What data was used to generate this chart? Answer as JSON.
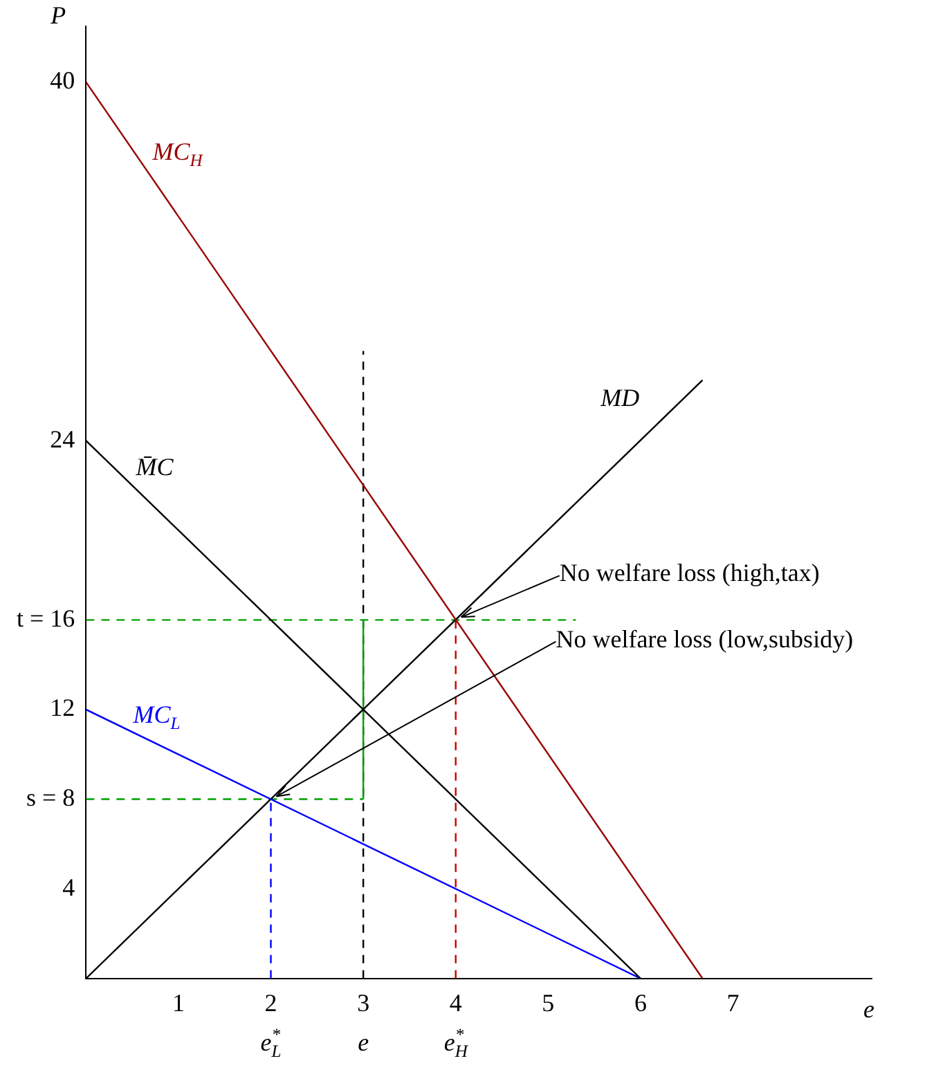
{
  "chart_data": {
    "type": "line",
    "ylabel": "P",
    "xlabel": "e",
    "xlim": [
      0,
      8.5
    ],
    "ylim": [
      0,
      42.5
    ],
    "xticks": [
      1,
      2,
      3,
      4,
      5,
      6,
      7
    ],
    "yticks": [
      4,
      {
        "value": 8,
        "label": "s = 8"
      },
      12,
      {
        "value": 16,
        "label": "t = 16"
      },
      24,
      40
    ],
    "grid": false,
    "legend": false,
    "marker": "none",
    "series": [
      {
        "name": "MC$_{H}$",
        "color": "#990000",
        "x": [
          0,
          6.67
        ],
        "values": [
          40,
          0
        ]
      },
      {
        "name": "M̄C",
        "color": "#000000",
        "x": [
          0,
          6
        ],
        "values": [
          24,
          0
        ]
      },
      {
        "name": "MC$_{L}$",
        "color": "#0000ff",
        "x": [
          0,
          6
        ],
        "values": [
          12,
          0
        ]
      },
      {
        "name": "MD",
        "color": "#000000",
        "x": [
          0,
          6.67
        ],
        "values": [
          0,
          26.7
        ]
      },
      {
        "color": "#00a000",
        "x": [
          0,
          5.3
        ],
        "values": [
          16,
          16
        ],
        "line_style": "dashed"
      },
      {
        "color": "#00a000",
        "x": [
          0,
          3
        ],
        "values": [
          8,
          8
        ],
        "line_style": "dashed"
      },
      {
        "color": "#00a000",
        "x": [
          3,
          3
        ],
        "values": [
          8,
          16
        ]
      },
      {
        "color": "#000000",
        "x": [
          3,
          3
        ],
        "values": [
          0,
          28
        ],
        "line_style": "dashed"
      },
      {
        "color": "#0000ff",
        "x": [
          2,
          2
        ],
        "values": [
          0,
          8
        ],
        "line_style": "dashed"
      },
      {
        "color": "#cc0000",
        "x": [
          4,
          4
        ],
        "values": [
          0,
          16
        ],
        "line_style": "dashed"
      }
    ],
    "annotations": [
      {
        "text": "No welfare loss (high,tax)",
        "x": 4,
        "y": 16
      },
      {
        "text": "No welfare loss (low,subsidy)",
        "x": 2,
        "y": 8
      },
      {
        "text": "e$_{L}$$^{*}$",
        "x": 2,
        "y": 0
      },
      {
        "text": "e",
        "x": 3,
        "y": 0
      },
      {
        "text": "e$_{H}$$^{*}$",
        "x": 4,
        "y": 0
      }
    ]
  }
}
